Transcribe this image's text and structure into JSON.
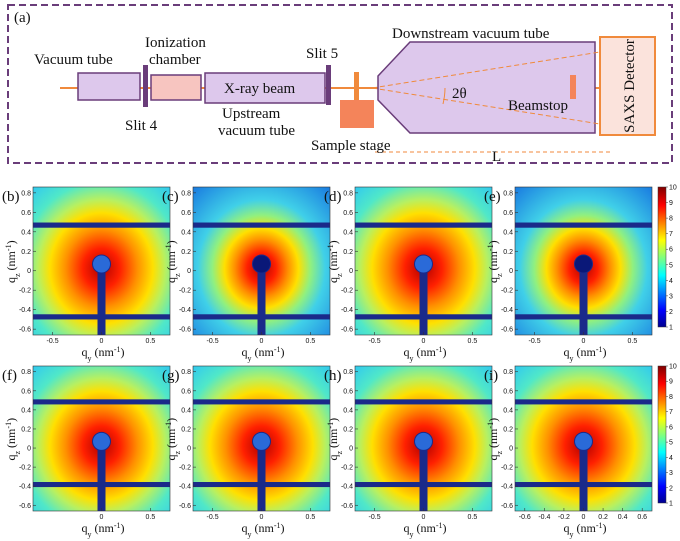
{
  "schematic": {
    "label": "(a)",
    "vacuum_tube": "Vacuum tube",
    "ionization_1": "Ionization",
    "ionization_2": "chamber",
    "slit4": "Slit 4",
    "xray_beam": "X-ray beam",
    "upstream_1": "Upstream",
    "upstream_2": "vacuum tube",
    "slit5": "Slit 5",
    "sample_stage": "Sample stage",
    "downstream": "Downstream vacuum tube",
    "angle": "2θ",
    "beamstop": "Beamstop",
    "detector": "SAXS Detector",
    "distance": "L"
  },
  "axes": {
    "x_label": {
      "symbol": "q",
      "sub": "y",
      "unit": " (nm",
      "sup": "-1",
      "close": ")"
    },
    "y_label": {
      "symbol": "q",
      "sub": "z",
      "unit": " (nm",
      "sup": "-1",
      "close": ")"
    }
  },
  "panels": [
    {
      "label": "(b)",
      "xticks": [
        -0.5,
        0,
        0.5
      ],
      "yticks": [
        0.8,
        0.6,
        0.4,
        0.2,
        0,
        -0.2,
        -0.4,
        -0.6
      ]
    },
    {
      "label": "(c)",
      "xticks": [
        -0.5,
        0,
        0.5
      ],
      "yticks": [
        0.8,
        0.6,
        0.4,
        0.2,
        0,
        -0.2,
        -0.4,
        -0.6
      ]
    },
    {
      "label": "(d)",
      "xticks": [
        -0.5,
        0,
        0.5
      ],
      "yticks": [
        0.8,
        0.6,
        0.4,
        0.2,
        0,
        -0.2,
        -0.4,
        -0.6
      ]
    },
    {
      "label": "(e)",
      "xticks": [
        -0.5,
        0,
        0.5
      ],
      "yticks": [
        0.8,
        0.6,
        0.4,
        0.2,
        0,
        -0.2,
        -0.4,
        -0.6
      ]
    },
    {
      "label": "(f)",
      "xticks": [
        0,
        0.5
      ],
      "yticks": [
        0.8,
        0.6,
        0.4,
        0.2,
        0,
        -0.2,
        -0.4,
        -0.6
      ]
    },
    {
      "label": "(g)",
      "xticks": [
        -0.5,
        0,
        0.5
      ],
      "yticks": [
        0.8,
        0.6,
        0.4,
        0.2,
        0,
        -0.2,
        -0.4,
        -0.6
      ]
    },
    {
      "label": "(h)",
      "xticks": [
        -0.5,
        0,
        0.5
      ],
      "yticks": [
        0.8,
        0.6,
        0.4,
        0.2,
        0,
        -0.2,
        -0.4,
        -0.6
      ]
    },
    {
      "label": "(i)",
      "xticks": [
        -0.6,
        -0.4,
        -0.2,
        0,
        0.2,
        0.4,
        0.6
      ],
      "yticks": [
        0.8,
        0.6,
        0.4,
        0.2,
        0,
        -0.2,
        -0.4,
        -0.6
      ]
    }
  ],
  "colorbars": [
    {
      "ticks": [
        1,
        2,
        3,
        4,
        5,
        6,
        7,
        8,
        9,
        10
      ]
    },
    {
      "ticks": [
        1,
        2,
        3,
        4,
        5,
        6,
        7,
        8,
        9,
        10
      ]
    }
  ]
}
